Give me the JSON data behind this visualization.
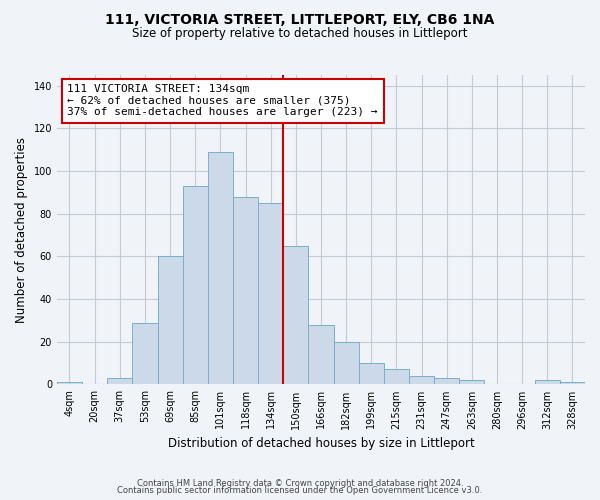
{
  "title": "111, VICTORIA STREET, LITTLEPORT, ELY, CB6 1NA",
  "subtitle": "Size of property relative to detached houses in Littleport",
  "xlabel": "Distribution of detached houses by size in Littleport",
  "ylabel": "Number of detached properties",
  "bar_labels": [
    "4sqm",
    "20sqm",
    "37sqm",
    "53sqm",
    "69sqm",
    "85sqm",
    "101sqm",
    "118sqm",
    "134sqm",
    "150sqm",
    "166sqm",
    "182sqm",
    "199sqm",
    "215sqm",
    "231sqm",
    "247sqm",
    "263sqm",
    "280sqm",
    "296sqm",
    "312sqm",
    "328sqm"
  ],
  "bar_values": [
    1,
    0,
    3,
    29,
    60,
    93,
    109,
    88,
    85,
    65,
    28,
    20,
    10,
    7,
    4,
    3,
    2,
    0,
    0,
    2,
    1
  ],
  "bar_color": "#ccd9e8",
  "bar_edge_color": "#7aafc8",
  "vline_index": 8,
  "vline_color": "#cc0000",
  "annotation_line1": "111 VICTORIA STREET: 134sqm",
  "annotation_line2": "← 62% of detached houses are smaller (375)",
  "annotation_line3": "37% of semi-detached houses are larger (223) →",
  "annotation_box_facecolor": "#ffffff",
  "annotation_box_edgecolor": "#cc0000",
  "ylim": [
    0,
    145
  ],
  "yticks": [
    0,
    20,
    40,
    60,
    80,
    100,
    120,
    140
  ],
  "footer1": "Contains HM Land Registry data © Crown copyright and database right 2024.",
  "footer2": "Contains public sector information licensed under the Open Government Licence v3.0.",
  "background_color": "#f0f4f8",
  "grid_color": "#c0ccd8",
  "title_fontsize": 10,
  "subtitle_fontsize": 8.5,
  "tick_fontsize": 7,
  "ylabel_fontsize": 8.5,
  "xlabel_fontsize": 8.5,
  "annotation_fontsize": 8,
  "footer_fontsize": 6
}
